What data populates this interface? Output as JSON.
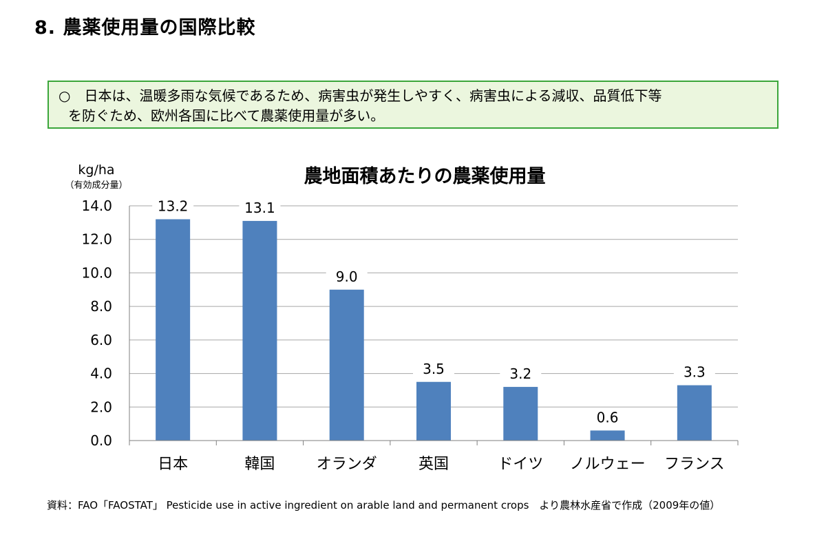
{
  "page": {
    "heading": "8. 農薬使用量の国際比較"
  },
  "summary": {
    "line1": "○　日本は、温暖多雨な気候であるため、病害虫が発生しやすく、病害虫による減収、品質低下等",
    "line2": "を防ぐため、欧州各国に比べて農薬使用量が多い。"
  },
  "chart_data": {
    "type": "bar",
    "title": "農地面積あたりの農薬使用量",
    "ylabel": "kg/ha",
    "ylabel_sub": "（有効成分量）",
    "categories": [
      "日本",
      "韓国",
      "オランダ",
      "英国",
      "ドイツ",
      "ノルウェー",
      "フランス"
    ],
    "values": [
      13.2,
      13.1,
      9.0,
      3.5,
      3.2,
      0.6,
      3.3
    ],
    "value_labels": [
      "13.2",
      "13.1",
      "9.0",
      "3.5",
      "3.2",
      "0.6",
      "3.3"
    ],
    "ylim": [
      0,
      14
    ],
    "yticks": [
      "0.0",
      "2.0",
      "4.0",
      "6.0",
      "8.0",
      "10.0",
      "12.0",
      "14.0"
    ],
    "grid": true,
    "legend": "none",
    "bar_color": "#4f81bd",
    "grid_color": "#a6a6a6"
  },
  "source": {
    "note": "資料：FAO「FAOSTAT」 Pesticide use in active ingredient on arable land and permanent crops　より農林水産省で作成（2009年の値）"
  }
}
